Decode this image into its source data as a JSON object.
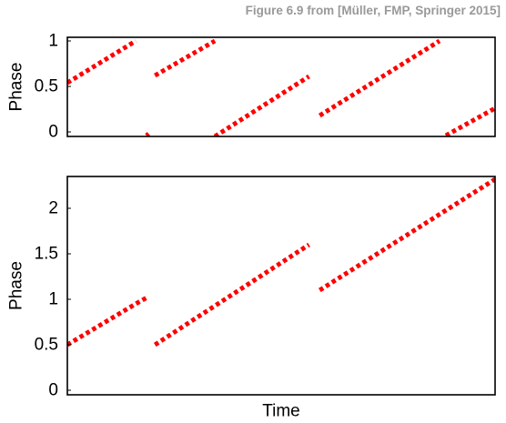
{
  "caption": "Figure 6.9 from [Müller, FMP, Springer 2015]",
  "colors": {
    "series": "#ff0000",
    "axis": "#000000",
    "caption": "#999999"
  },
  "chart_data": [
    {
      "type": "line",
      "title": "",
      "xlabel": "",
      "ylabel": "Phase",
      "xlim": [
        0,
        1
      ],
      "ylim": [
        -0.05,
        1.04
      ],
      "yticks": [
        0,
        0.5,
        1
      ],
      "ytick_labels": [
        "0",
        "0.5",
        "1"
      ],
      "xticks": [],
      "grid": false,
      "style": "dotted",
      "series": [
        {
          "values": [],
          "segments": [
            [
              [
                0.0,
                0.54
              ],
              [
                0.16,
                1.0
              ]
            ],
            [
              [
                0.185,
                -0.04
              ],
              [
                0.19,
                -0.02
              ]
            ],
            [
              [
                0.205,
                0.62
              ],
              [
                0.345,
                1.0
              ]
            ],
            [
              [
                0.345,
                -0.05
              ],
              [
                0.565,
                0.61
              ]
            ],
            [
              [
                0.59,
                0.18
              ],
              [
                0.87,
                1.0
              ]
            ],
            [
              [
                0.885,
                -0.04
              ],
              [
                1.0,
                0.26
              ]
            ]
          ]
        }
      ]
    },
    {
      "type": "line",
      "title": "",
      "xlabel": "Time",
      "ylabel": "Phase",
      "xlim": [
        0,
        1
      ],
      "ylim": [
        -0.05,
        2.35
      ],
      "yticks": [
        0,
        0.5,
        1,
        1.5,
        2
      ],
      "ytick_labels": [
        "0",
        "0.5",
        "1",
        "1.5",
        "2"
      ],
      "xticks": [],
      "grid": false,
      "style": "dotted",
      "series": [
        {
          "values": [],
          "segments": [
            [
              [
                0.0,
                0.5
              ],
              [
                0.16,
                0.95
              ],
              [
                0.19,
                1.03
              ]
            ],
            [
              [
                0.205,
                0.5
              ],
              [
                0.565,
                1.6
              ]
            ],
            [
              [
                0.59,
                1.1
              ],
              [
                1.0,
                2.32
              ]
            ]
          ]
        }
      ]
    }
  ]
}
